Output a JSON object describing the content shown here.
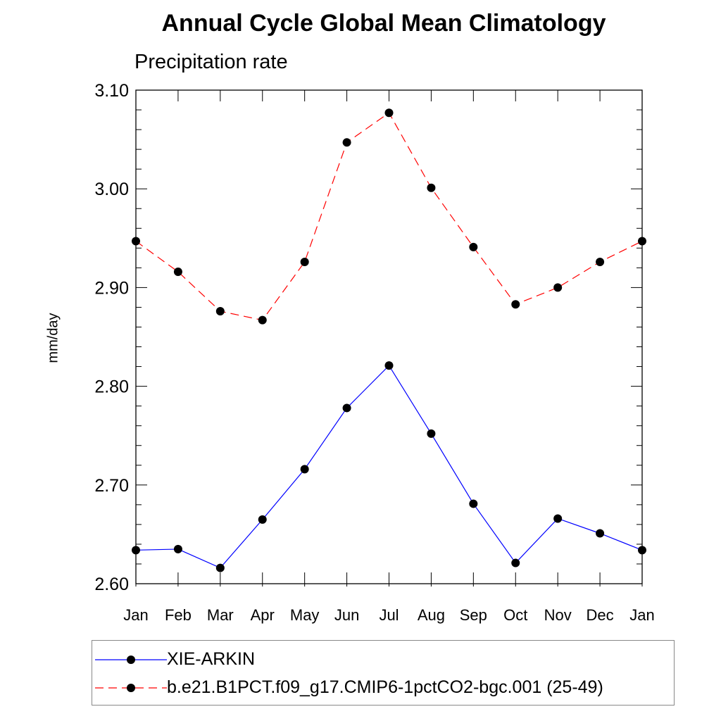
{
  "chart_data": {
    "type": "line",
    "title": "Annual Cycle Global Mean Climatology",
    "subtitle": "Precipitation rate",
    "xlabel": "",
    "ylabel": "mm/day",
    "categories": [
      "Jan",
      "Feb",
      "Mar",
      "Apr",
      "May",
      "Jun",
      "Jul",
      "Aug",
      "Sep",
      "Oct",
      "Nov",
      "Dec",
      "Jan"
    ],
    "ylim": [
      2.6,
      3.1
    ],
    "yticks": [
      "2.60",
      "2.70",
      "2.80",
      "2.90",
      "3.00",
      "3.10"
    ],
    "ytick_values": [
      2.6,
      2.7,
      2.8,
      2.9,
      3.0,
      3.1
    ],
    "series": [
      {
        "name": "XIE-ARKIN",
        "color": "#0000ff",
        "dash": "solid",
        "values": [
          2.634,
          2.635,
          2.616,
          2.665,
          2.716,
          2.778,
          2.821,
          2.752,
          2.681,
          2.621,
          2.666,
          2.651,
          2.634
        ]
      },
      {
        "name": "b.e21.B1PCT.f09_g17.CMIP6-1pctCO2-bgc.001 (25-49)",
        "color": "#ff0000",
        "dash": "dashed",
        "values": [
          2.947,
          2.916,
          2.876,
          2.867,
          2.926,
          3.047,
          3.077,
          3.001,
          2.941,
          2.883,
          2.9,
          2.926,
          2.947
        ]
      }
    ],
    "legend_position": "bottom",
    "grid": false
  }
}
